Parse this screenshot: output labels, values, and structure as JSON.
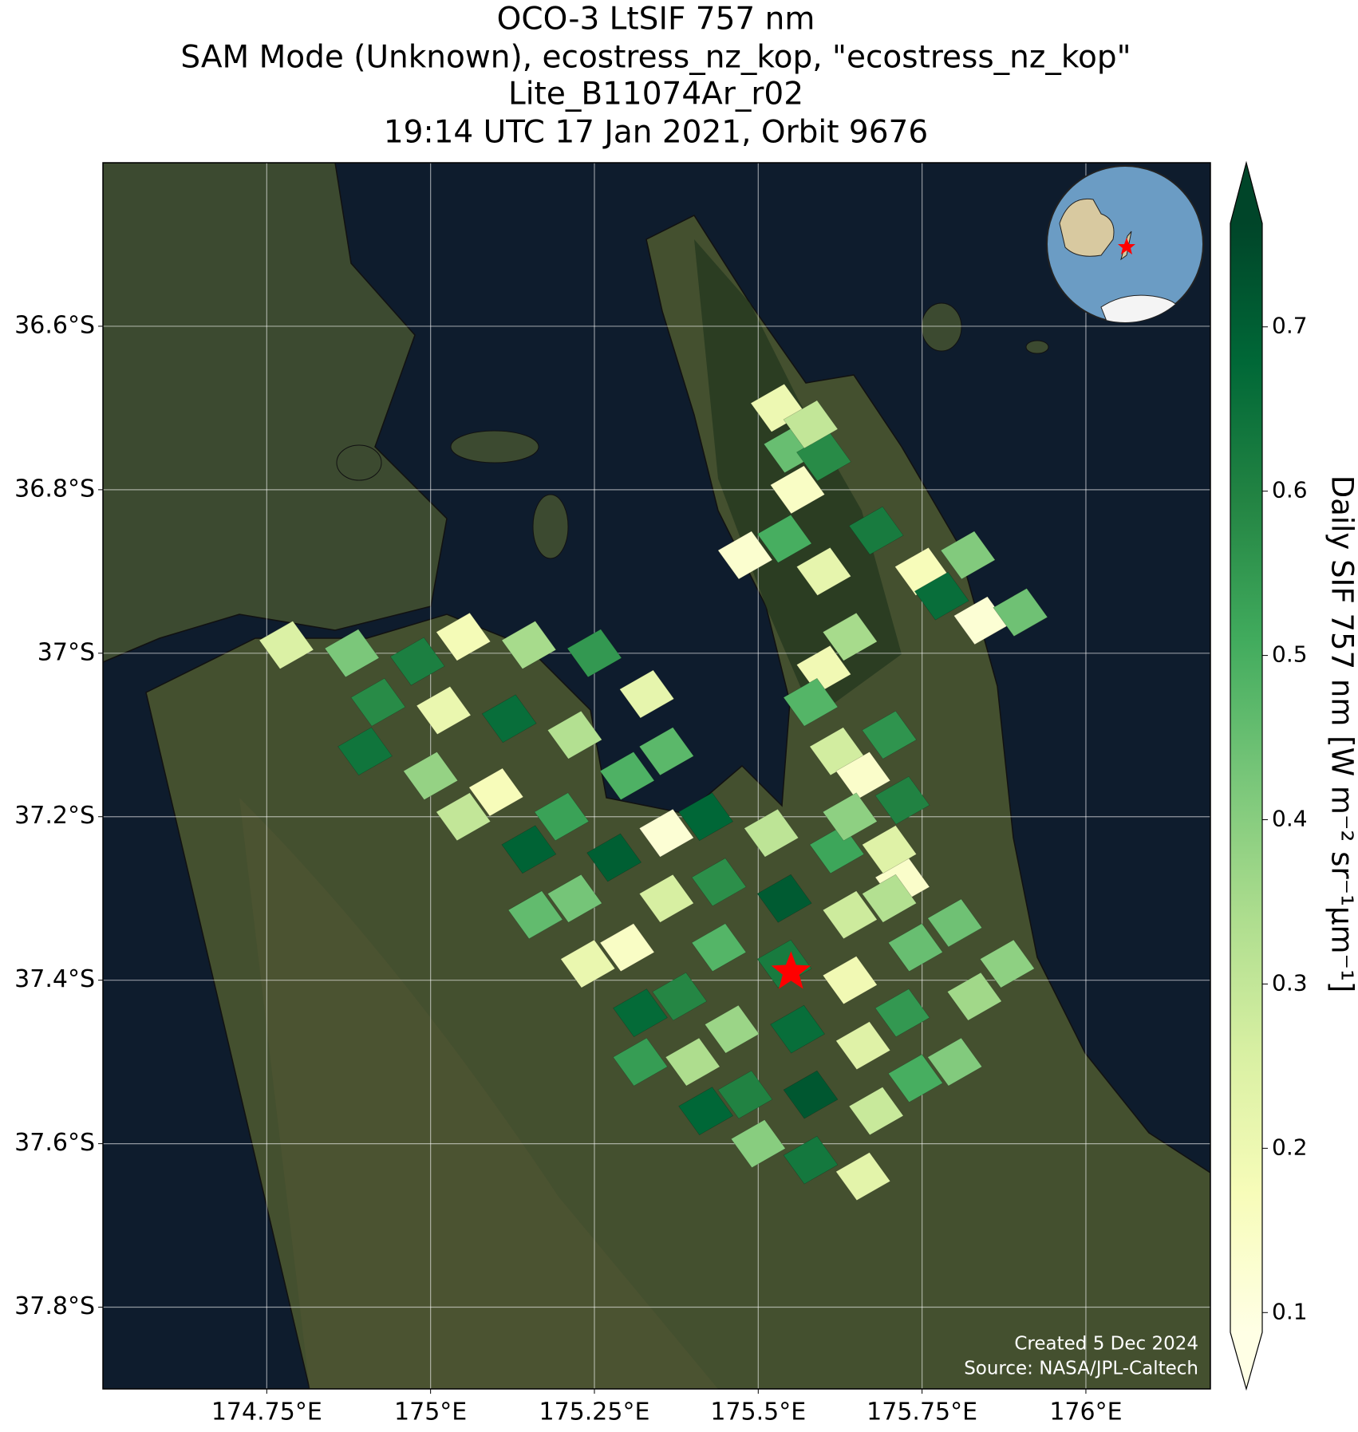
{
  "chart_data": {
    "type": "map",
    "title": [
      "OCO-3 LtSIF 757 nm",
      "SAM Mode (Unknown), ecostress_nz_kop, \"ecostress_nz_kop\"",
      "Lite_B11074Ar_r02",
      "19:14 UTC 17 Jan 2021, Orbit 9676"
    ],
    "xlim": [
      174.5,
      176.19
    ],
    "ylim": [
      -37.9,
      -36.4
    ],
    "xticks": [
      {
        "value": 174.75,
        "label": "174.75°E"
      },
      {
        "value": 175,
        "label": "175°E"
      },
      {
        "value": 175.25,
        "label": "175.25°E"
      },
      {
        "value": 175.5,
        "label": "175.5°E"
      },
      {
        "value": 175.75,
        "label": "175.75°E"
      },
      {
        "value": 176,
        "label": "176°E"
      }
    ],
    "yticks": [
      {
        "value": -36.6,
        "label": "36.6°S"
      },
      {
        "value": -36.8,
        "label": "36.8°S"
      },
      {
        "value": -37,
        "label": "37°S"
      },
      {
        "value": -37.2,
        "label": "37.2°S"
      },
      {
        "value": -37.4,
        "label": "37.4°S"
      },
      {
        "value": -37.6,
        "label": "37.6°S"
      },
      {
        "value": -37.8,
        "label": "37.8°S"
      }
    ],
    "grid": true,
    "colorbar": {
      "label": "Daily SIF 757 nm [W m⁻² sr⁻¹μm⁻¹]",
      "clim": [
        0.088,
        0.763
      ],
      "ticks": [
        0.1,
        0.2,
        0.3,
        0.4,
        0.5,
        0.6,
        0.7
      ],
      "cmap": [
        "#ffffe5",
        "#f7fcb9",
        "#d9f0a3",
        "#addd8e",
        "#78c679",
        "#41ab5d",
        "#238443",
        "#006837",
        "#004529"
      ]
    },
    "target": {
      "lon": 175.55,
      "lat": -37.39,
      "color": "#ff0000"
    },
    "soundings": {
      "lon": [
        174.78,
        174.88,
        174.98,
        175.05,
        175.15,
        175.25,
        175.33,
        175.36,
        175.42,
        175.52,
        175.62,
        175.72,
        175.8,
        175.88,
        174.92,
        175.02,
        175.12,
        175.22,
        175.3,
        175.36,
        175.44,
        175.54,
        175.64,
        175.74,
        175.83,
        174.9,
        175.0,
        175.1,
        175.2,
        175.28,
        175.36,
        175.44,
        175.54,
        175.64,
        175.72,
        175.8,
        175.05,
        175.15,
        175.22,
        175.3,
        175.38,
        175.46,
        175.56,
        175.66,
        175.74,
        175.16,
        175.24,
        175.32,
        175.4,
        175.48,
        175.58,
        175.68,
        175.32,
        175.42,
        175.5,
        175.58,
        175.66,
        175.53,
        175.55,
        175.56,
        175.6,
        175.58,
        175.48,
        175.54,
        175.6,
        175.68,
        175.75,
        175.82,
        175.78,
        175.84,
        175.64,
        175.6,
        175.58,
        175.62,
        175.7,
        175.66,
        175.64,
        175.72,
        175.7,
        175.7,
        175.9
      ],
      "lat": [
        -36.99,
        -37.0,
        -37.01,
        -36.98,
        -36.99,
        -37.0,
        -37.05,
        -37.12,
        -37.2,
        -37.22,
        -37.24,
        -37.28,
        -37.33,
        -37.38,
        -37.06,
        -37.07,
        -37.08,
        -37.1,
        -37.15,
        -37.22,
        -37.28,
        -37.3,
        -37.32,
        -37.36,
        -37.42,
        -37.12,
        -37.15,
        -37.17,
        -37.2,
        -37.25,
        -37.3,
        -37.36,
        -37.38,
        -37.4,
        -37.44,
        -37.5,
        -37.2,
        -37.24,
        -37.3,
        -37.36,
        -37.42,
        -37.46,
        -37.46,
        -37.48,
        -37.52,
        -37.32,
        -37.38,
        -37.44,
        -37.5,
        -37.54,
        -37.54,
        -37.56,
        -37.5,
        -37.56,
        -37.6,
        -37.62,
        -37.64,
        -36.7,
        -36.75,
        -36.8,
        -36.76,
        -36.72,
        -36.88,
        -36.86,
        -36.9,
        -36.85,
        -36.9,
        -36.88,
        -36.93,
        -36.96,
        -36.98,
        -37.02,
        -37.06,
        -37.12,
        -37.1,
        -37.15,
        -37.2,
        -37.18,
        -37.24,
        -37.3,
        -36.95
      ],
      "sif": [
        0.25,
        0.42,
        0.61,
        0.18,
        0.35,
        0.55,
        0.22,
        0.47,
        0.68,
        0.31,
        0.52,
        0.14,
        0.44,
        0.39,
        0.58,
        0.21,
        0.66,
        0.33,
        0.49,
        0.12,
        0.57,
        0.71,
        0.28,
        0.45,
        0.36,
        0.64,
        0.38,
        0.17,
        0.53,
        0.7,
        0.26,
        0.48,
        0.62,
        0.19,
        0.55,
        0.41,
        0.3,
        0.69,
        0.43,
        0.15,
        0.59,
        0.37,
        0.66,
        0.24,
        0.5,
        0.46,
        0.21,
        0.67,
        0.34,
        0.6,
        0.72,
        0.29,
        0.54,
        0.68,
        0.4,
        0.63,
        0.23,
        0.2,
        0.45,
        0.15,
        0.58,
        0.3,
        0.13,
        0.5,
        0.22,
        0.62,
        0.17,
        0.41,
        0.66,
        0.12,
        0.35,
        0.19,
        0.48,
        0.27,
        0.56,
        0.14,
        0.39,
        0.6,
        0.24,
        0.33,
        0.44
      ]
    },
    "annotations": [
      "Created 5 Dec 2024",
      "Source: NASA/JPL-Caltech"
    ]
  }
}
